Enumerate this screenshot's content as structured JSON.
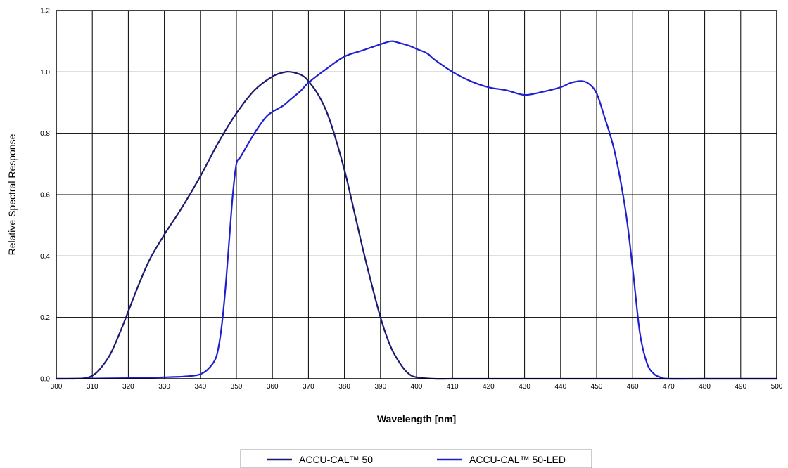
{
  "chart_data": {
    "type": "line",
    "title": "",
    "xlabel": "Wavelength [nm]",
    "ylabel": "Relative Spectral Response",
    "xlim": [
      300,
      500
    ],
    "ylim": [
      0,
      1.2
    ],
    "x_ticks": [
      300,
      310,
      320,
      330,
      340,
      350,
      360,
      370,
      380,
      390,
      400,
      410,
      420,
      430,
      440,
      450,
      460,
      470,
      480,
      490,
      500
    ],
    "y_ticks": [
      0.0,
      0.2,
      0.4,
      0.6,
      0.8,
      1.0,
      1.2
    ],
    "x_tick_labels": [
      "300",
      "310",
      "320",
      "330",
      "340",
      "350",
      "360",
      "370",
      "380",
      "390",
      "400",
      "410",
      "420",
      "430",
      "440",
      "450",
      "460",
      "470",
      "480",
      "490",
      "500"
    ],
    "y_tick_labels": [
      "0.0",
      "0.2",
      "0.4",
      "0.6",
      "0.8",
      "1.0",
      "1.2"
    ],
    "grid": true,
    "legend_position": "bottom-center",
    "series": [
      {
        "name": "ACCU-CAL™ 50",
        "color": "#1a1a6e",
        "x": [
          300,
          305,
          308,
          310,
          312,
          315,
          318,
          320,
          323,
          326,
          330,
          335,
          340,
          345,
          350,
          355,
          360,
          363,
          365,
          368,
          370,
          373,
          376,
          380,
          383,
          386,
          390,
          393,
          396,
          398,
          400,
          405,
          410,
          420,
          450,
          480,
          500
        ],
        "y": [
          0.0,
          0.0,
          0.002,
          0.01,
          0.03,
          0.08,
          0.16,
          0.22,
          0.31,
          0.39,
          0.47,
          0.56,
          0.66,
          0.77,
          0.865,
          0.94,
          0.985,
          0.998,
          1.0,
          0.99,
          0.97,
          0.92,
          0.84,
          0.68,
          0.53,
          0.38,
          0.2,
          0.1,
          0.04,
          0.015,
          0.005,
          0.0,
          0.0,
          0.0,
          0.0,
          0.0,
          0.0
        ]
      },
      {
        "name": "ACCU-CAL™ 50-LED",
        "color": "#1f1fd0",
        "x": [
          300,
          320,
          330,
          335,
          338,
          340,
          342,
          344,
          345,
          346,
          347,
          348,
          349,
          350,
          351,
          352,
          355,
          358,
          360,
          363,
          365,
          368,
          370,
          375,
          380,
          385,
          390,
          393,
          395,
          398,
          400,
          403,
          405,
          410,
          415,
          420,
          425,
          430,
          435,
          440,
          443,
          446,
          448,
          450,
          452,
          455,
          458,
          460,
          462,
          464,
          466,
          468,
          470,
          480,
          490,
          500
        ],
        "y": [
          0.0,
          0.002,
          0.005,
          0.007,
          0.01,
          0.015,
          0.03,
          0.06,
          0.1,
          0.18,
          0.3,
          0.45,
          0.6,
          0.7,
          0.72,
          0.74,
          0.8,
          0.85,
          0.87,
          0.89,
          0.91,
          0.94,
          0.965,
          1.01,
          1.05,
          1.07,
          1.09,
          1.1,
          1.095,
          1.085,
          1.075,
          1.06,
          1.04,
          1.0,
          0.97,
          0.95,
          0.94,
          0.925,
          0.935,
          0.95,
          0.965,
          0.97,
          0.96,
          0.93,
          0.86,
          0.74,
          0.55,
          0.36,
          0.15,
          0.05,
          0.015,
          0.004,
          0.0,
          0.0,
          0.0,
          0.0
        ]
      }
    ]
  }
}
